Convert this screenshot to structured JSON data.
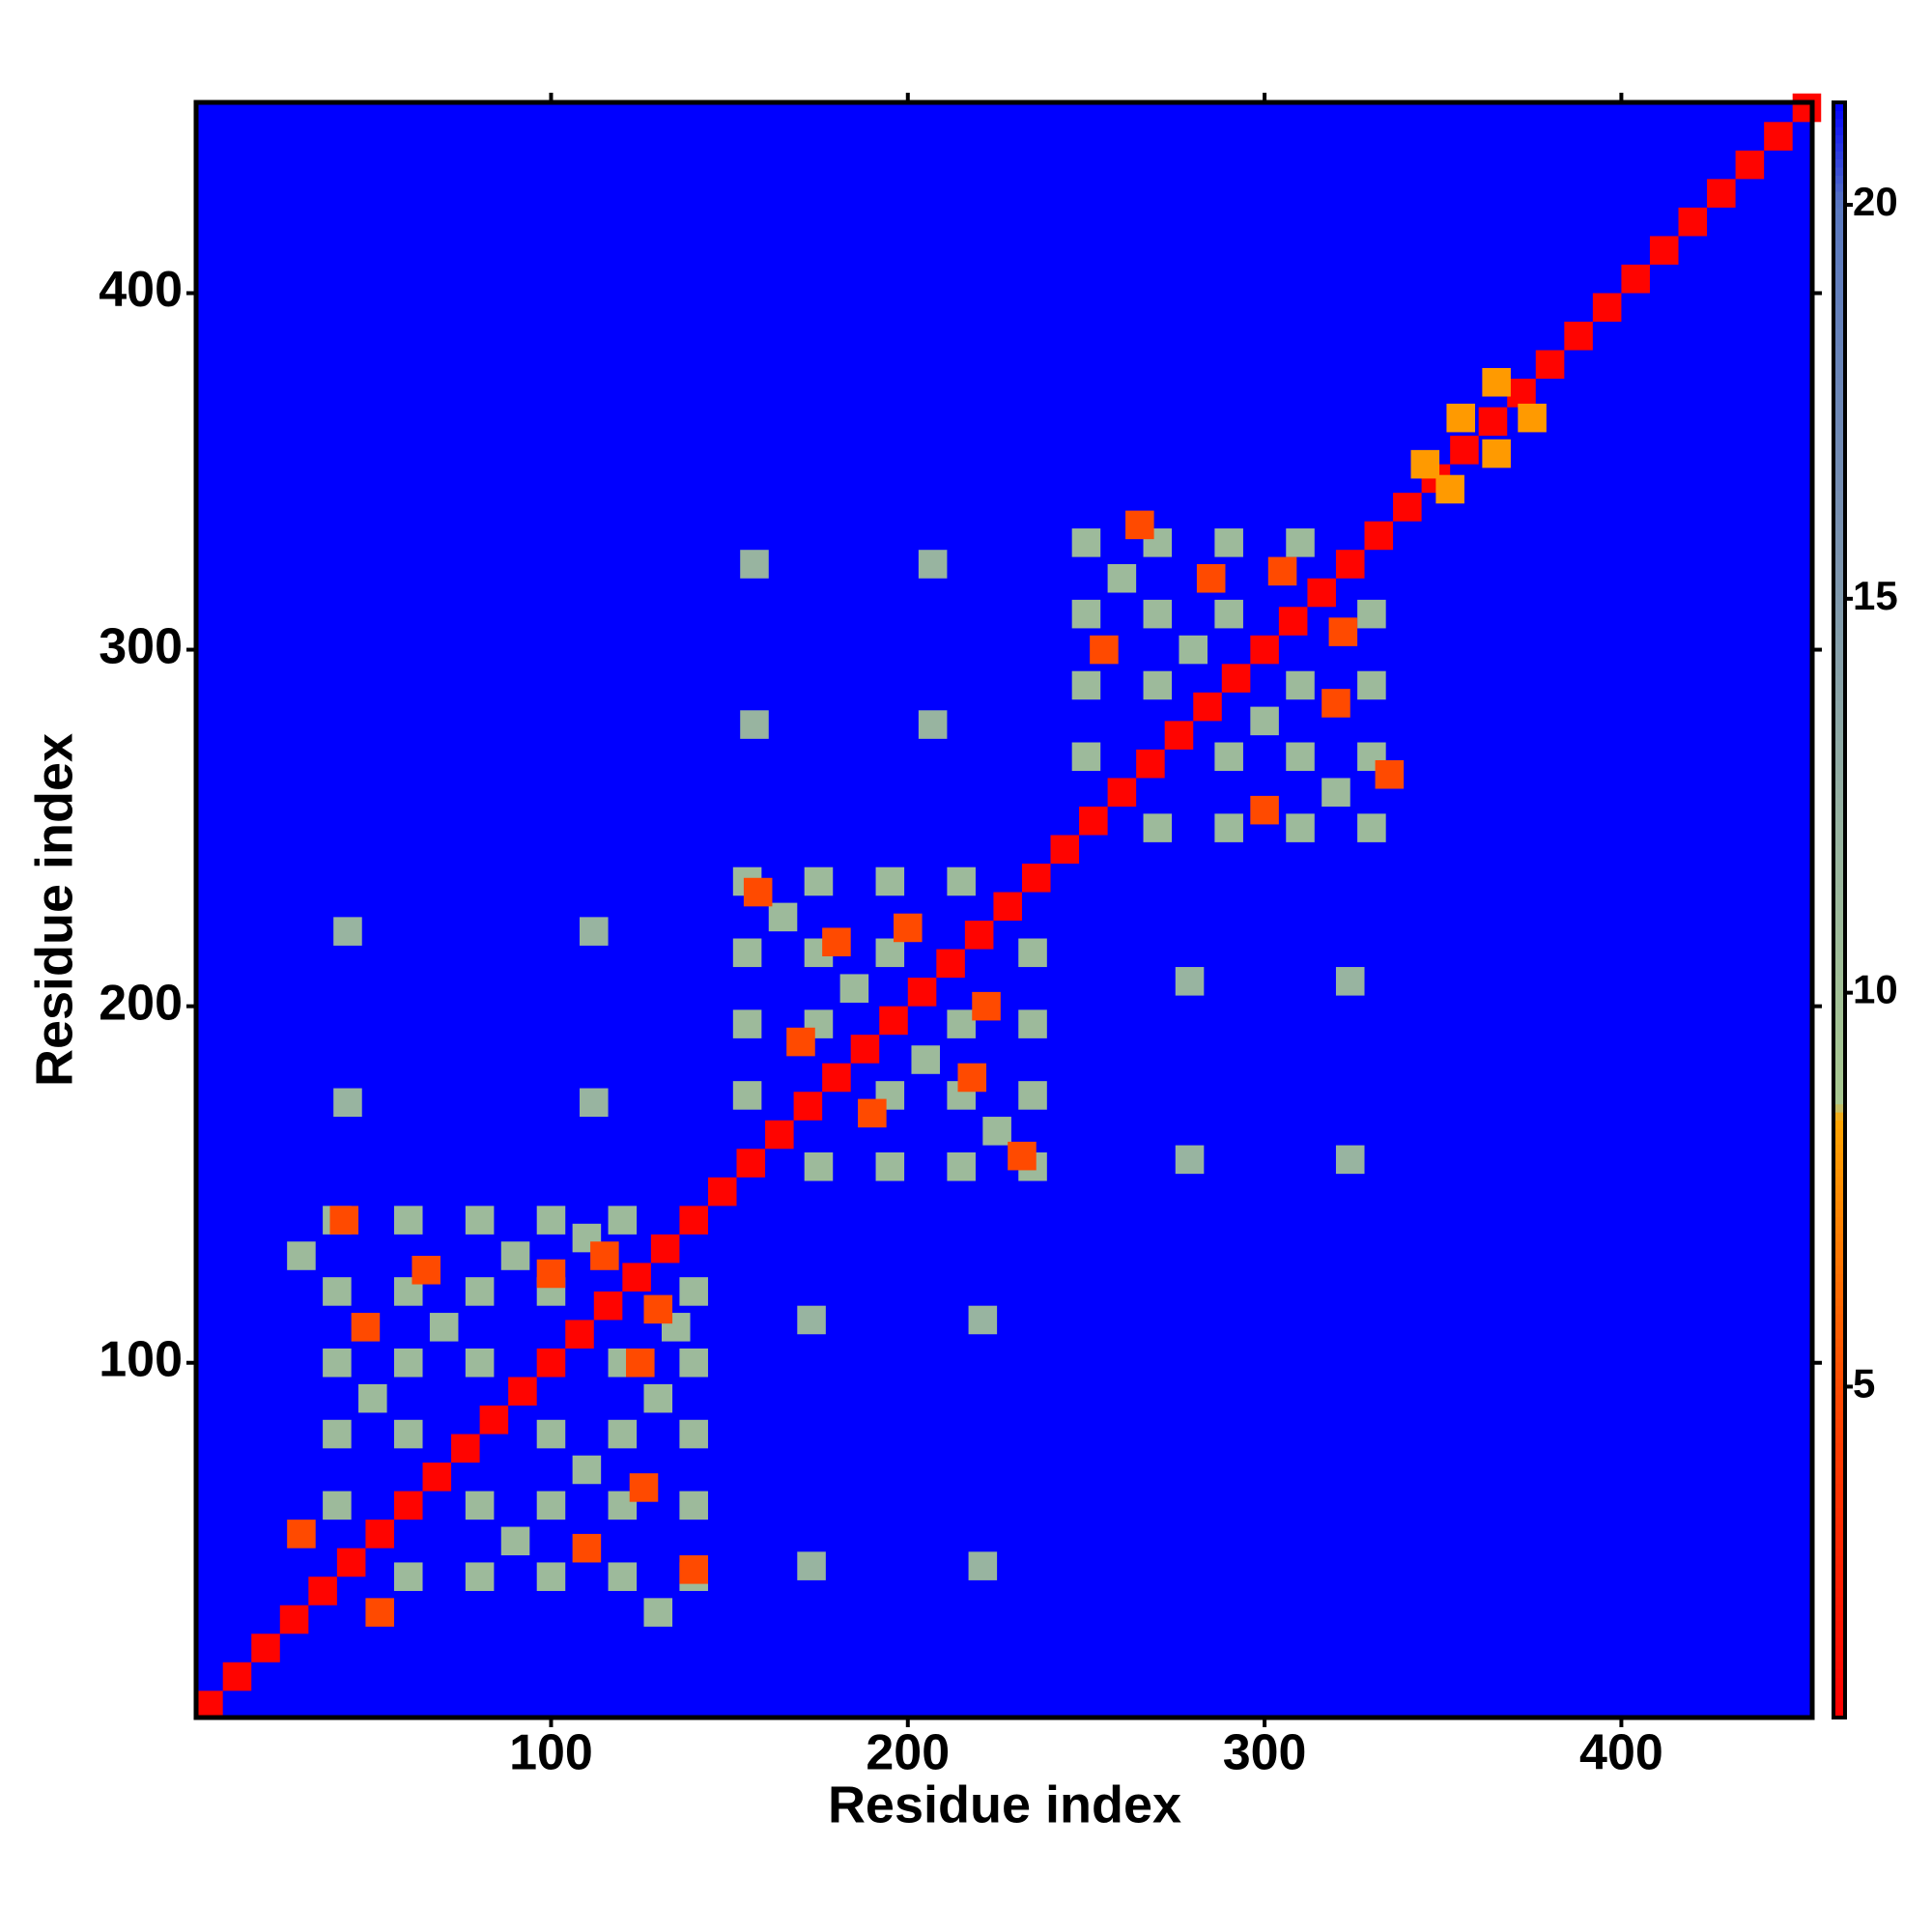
{
  "chart_data": {
    "type": "heatmap",
    "xlabel": "Residue index",
    "ylabel": "Residue index",
    "xlim": [
      0.5,
      453.5
    ],
    "ylim": [
      0.5,
      453.5
    ],
    "xticks": [
      100,
      200,
      300,
      400
    ],
    "yticks": [
      100,
      200,
      300,
      400
    ],
    "clim": [
      0.8,
      21.3
    ],
    "cticks": [
      5,
      10,
      15,
      20
    ],
    "colorscale": [
      [
        0.8,
        "#ff0000"
      ],
      [
        5,
        "#ff4a00"
      ],
      [
        8.4,
        "#ffa500"
      ],
      [
        8.6,
        "#a8c890"
      ],
      [
        12,
        "#98b4a0"
      ],
      [
        16,
        "#7890b0"
      ],
      [
        20,
        "#5a78c0"
      ],
      [
        21.3,
        "#0000ff"
      ]
    ],
    "symmetric": true,
    "x": [
      4,
      12,
      20,
      28,
      36,
      44,
      52,
      60,
      68,
      76,
      84,
      92,
      100,
      108,
      116,
      124,
      132,
      140,
      148,
      156,
      164,
      172,
      180,
      188,
      196,
      204,
      212,
      220,
      228,
      236,
      244,
      252,
      260,
      268,
      276,
      284,
      292,
      300,
      308,
      316,
      324,
      332,
      340,
      348,
      356,
      364,
      372,
      380,
      388,
      396,
      404,
      412,
      420,
      428,
      436,
      444,
      452,
      40,
      40,
      40,
      40,
      40,
      60,
      60,
      60,
      60,
      80,
      80,
      80,
      100,
      100,
      120,
      30,
      50,
      70,
      90,
      110,
      42,
      65,
      48,
      100,
      115,
      30,
      155,
      155,
      155,
      155,
      175,
      175,
      175,
      195,
      195,
      215,
      165,
      185,
      158,
      180,
      200,
      170,
      250,
      250,
      250,
      250,
      270,
      270,
      270,
      290,
      290,
      310,
      260,
      280,
      265,
      285,
      305,
      255,
      43,
      112,
      43,
      112,
      157,
      207,
      157,
      207,
      345,
      355,
      365
    ],
    "y": [
      4,
      12,
      20,
      28,
      36,
      44,
      52,
      60,
      68,
      76,
      84,
      92,
      100,
      108,
      116,
      124,
      132,
      140,
      148,
      156,
      164,
      172,
      180,
      188,
      196,
      204,
      212,
      220,
      228,
      236,
      244,
      252,
      260,
      268,
      276,
      284,
      292,
      300,
      308,
      316,
      324,
      332,
      340,
      348,
      356,
      364,
      372,
      380,
      388,
      396,
      404,
      412,
      420,
      428,
      436,
      444,
      452,
      60,
      80,
      100,
      120,
      140,
      80,
      100,
      120,
      140,
      100,
      120,
      140,
      120,
      140,
      140,
      130,
      90,
      110,
      130,
      135,
      140,
      126,
      110,
      125,
      130,
      52,
      175,
      195,
      215,
      235,
      195,
      215,
      235,
      215,
      235,
      235,
      225,
      205,
      232,
      218,
      222,
      190,
      270,
      290,
      310,
      330,
      290,
      310,
      330,
      310,
      330,
      330,
      320,
      300,
      335,
      320,
      322,
      300,
      221,
      221,
      173,
      173,
      324,
      324,
      279,
      279,
      352,
      365,
      375
    ],
    "values": [
      1,
      1,
      1,
      1,
      1,
      1,
      1,
      1,
      1,
      1,
      1,
      1,
      1,
      1,
      1,
      1,
      1,
      1,
      1,
      1,
      1,
      1,
      1,
      1,
      1,
      1,
      1,
      1,
      1,
      1,
      1,
      1,
      1,
      1,
      1,
      1,
      1,
      1,
      1,
      1,
      1,
      1,
      1,
      1,
      1,
      1,
      1,
      1,
      1,
      1,
      1,
      1,
      1,
      1,
      1,
      1,
      1,
      11,
      11,
      11,
      11,
      11,
      11,
      11,
      11,
      11,
      11,
      11,
      11,
      11,
      11,
      11,
      11,
      11,
      11,
      11,
      11,
      5,
      5,
      5,
      5,
      5,
      5,
      11,
      11,
      11,
      11,
      11,
      11,
      11,
      11,
      11,
      11,
      11,
      11,
      5,
      5,
      5,
      5,
      11,
      11,
      11,
      11,
      11,
      11,
      11,
      11,
      11,
      11,
      11,
      11,
      5,
      5,
      5,
      5,
      12,
      12,
      12,
      12,
      12,
      12,
      12,
      12,
      8,
      8,
      8
    ]
  }
}
